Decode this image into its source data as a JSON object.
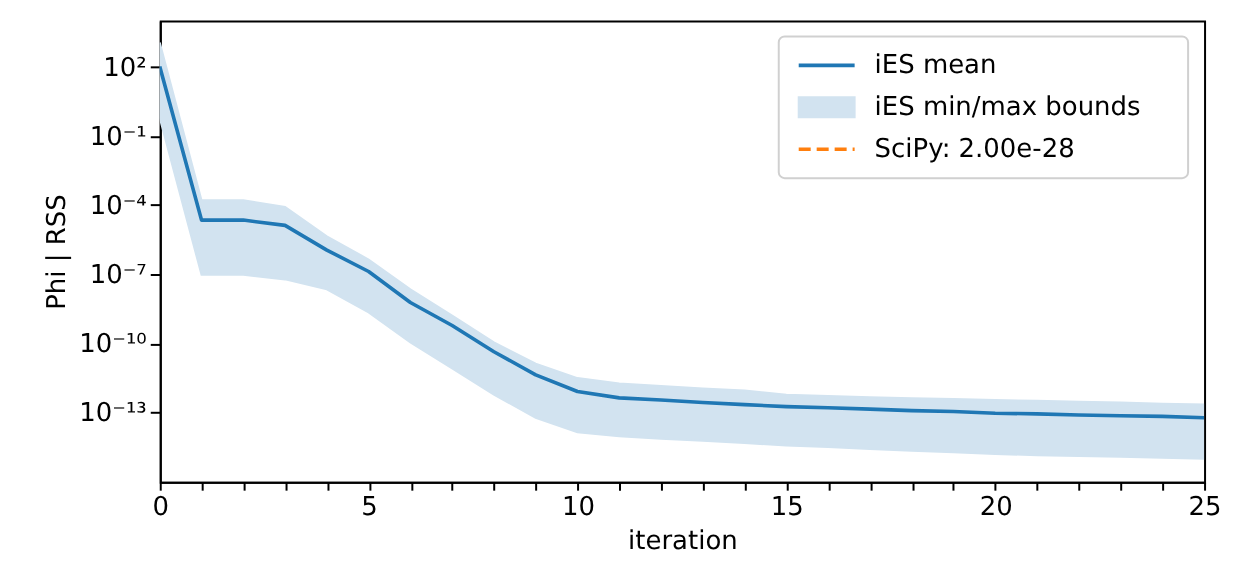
{
  "chart_data": {
    "type": "line",
    "xlabel": "iteration",
    "ylabel": "Phi | RSS",
    "log": "y",
    "grid": false,
    "legend": "top right",
    "x": [
      0,
      1,
      2,
      3,
      4,
      5,
      6,
      7,
      8,
      9,
      10,
      11,
      12,
      13,
      14,
      15,
      16,
      17,
      18,
      19,
      20,
      21,
      22,
      23,
      24,
      25
    ],
    "xlim": [
      0,
      25
    ],
    "xticks": [
      0,
      {
        "value": 1,
        "label": null
      },
      {
        "value": 2,
        "label": null
      },
      {
        "value": 3,
        "label": null
      },
      {
        "value": 4,
        "label": null
      },
      5,
      {
        "value": 6,
        "label": null
      },
      {
        "value": 7,
        "label": null
      },
      {
        "value": 8,
        "label": null
      },
      {
        "value": 9,
        "label": null
      },
      10,
      {
        "value": 11,
        "label": null
      },
      {
        "value": 12,
        "label": null
      },
      {
        "value": 13,
        "label": null
      },
      {
        "value": 14,
        "label": null
      },
      15,
      {
        "value": 16,
        "label": null
      },
      {
        "value": 17,
        "label": null
      },
      {
        "value": 18,
        "label": null
      },
      {
        "value": 19,
        "label": null
      },
      20,
      {
        "value": 21,
        "label": null
      },
      {
        "value": 22,
        "label": null
      },
      {
        "value": 23,
        "label": null
      },
      {
        "value": 24,
        "label": null
      },
      25
    ],
    "ylim": [
      1e-16,
      10000.0
    ],
    "yticks": [
      {
        "value": 100,
        "label": "10²"
      },
      {
        "value": 0.1,
        "label": "10⁻¹"
      },
      {
        "value": 0.0001,
        "label": "10⁻⁴"
      },
      {
        "value": 1e-07,
        "label": "10⁻⁷"
      },
      {
        "value": 1e-10,
        "label": "10⁻¹⁰"
      },
      {
        "value": 1e-13,
        "label": "10⁻¹³"
      }
    ],
    "series": [
      {
        "name": "iES mean",
        "color": "#1f77b4",
        "line_style": "solid",
        "values": [
          100,
          2.2e-05,
          2.2e-05,
          1.3e-05,
          1.1e-06,
          1.3e-07,
          5.9e-09,
          5.9e-10,
          4.3e-11,
          4.3e-12,
          8.1e-13,
          4.3e-13,
          3.5e-13,
          2.7e-13,
          2.2e-13,
          1.8e-13,
          1.6e-13,
          1.4e-13,
          1.2e-13,
          1.1e-13,
          9.3e-14,
          8.7e-14,
          7.8e-14,
          7.2e-14,
          6.8e-14,
          5.9e-14
        ],
        "lower": [
          0.59,
          9.3e-08,
          9.3e-08,
          5.9e-08,
          2.2e-08,
          2.2e-09,
          1.1e-10,
          8.1e-12,
          5.9e-13,
          5.9e-14,
          1.4e-14,
          9.3e-15,
          7.2e-15,
          5.9e-15,
          4.7e-15,
          3.7e-15,
          3.2e-15,
          2.6e-15,
          2.2e-15,
          1.9e-15,
          1.6e-15,
          1.4e-15,
          1.3e-15,
          1.2e-15,
          1.1e-15,
          1e-15
        ],
        "upper": [
          1100.0,
          0.00016,
          0.00016,
          8.1e-05,
          4.3e-06,
          4.3e-07,
          2.2e-08,
          1.6e-09,
          1.1e-10,
          1.3e-11,
          3.1e-12,
          1.8e-12,
          1.4e-12,
          1.1e-12,
          8.9e-13,
          5.9e-13,
          5.2e-13,
          4.6e-13,
          4.1e-13,
          3.8e-13,
          3.5e-13,
          3.2e-13,
          2.9e-13,
          2.7e-13,
          2.4e-13,
          2.2e-13
        ]
      },
      {
        "name": "iES min/max bounds",
        "type": "area",
        "color": "#d2e3f0",
        "values": [
          null,
          null,
          null,
          null,
          null,
          null,
          null,
          null,
          null,
          null,
          null,
          null,
          null,
          null,
          null,
          null,
          null,
          null,
          null,
          null,
          null,
          null,
          null,
          null,
          null,
          null
        ]
      },
      {
        "name": "SciPy: 2.00e-28",
        "type": "line",
        "color": "#ff7f0e",
        "line_style": "dashed",
        "values": [
          null,
          null,
          null,
          null,
          null,
          null,
          null,
          null,
          null,
          null,
          null,
          null,
          null,
          null,
          null,
          null,
          null,
          null,
          null,
          null,
          null,
          null,
          null,
          null,
          null,
          null
        ]
      }
    ]
  }
}
